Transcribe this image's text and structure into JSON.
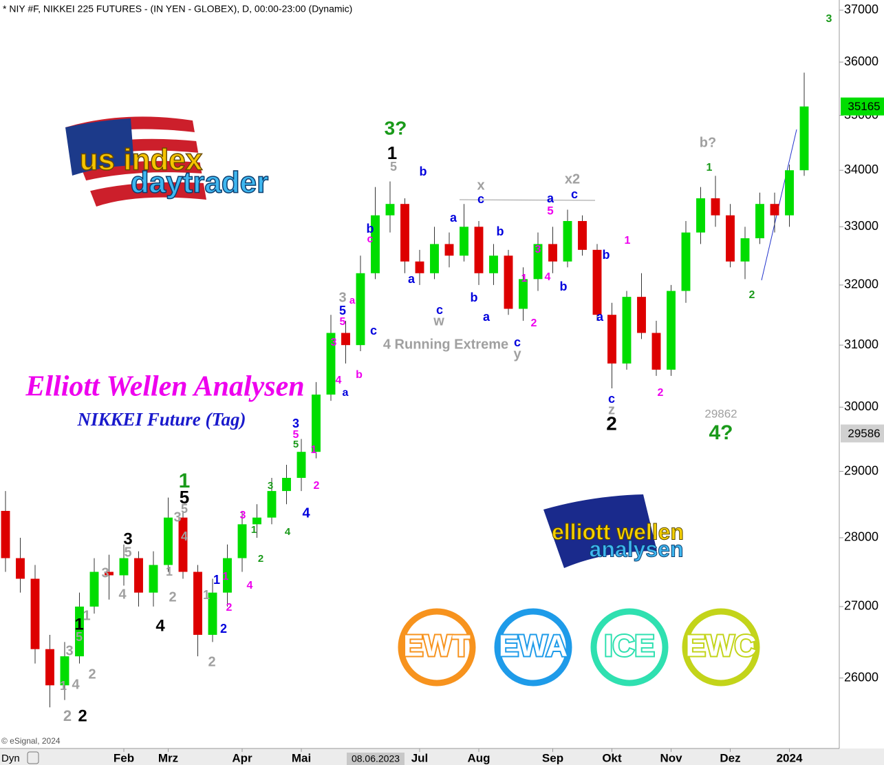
{
  "header": "* NIY #F, NIKKEI 225 FUTURES - (IN YEN - GLOBEX), D, 00:00-23:00 (Dynamic)",
  "footer": {
    "copyright": "© eSignal, 2024",
    "mode": "Dyn"
  },
  "logos": {
    "us": [
      "us index",
      "daytrader"
    ],
    "eu": [
      "elliott wellen",
      "analysen"
    ],
    "badges": [
      {
        "text": "EWT",
        "color": "#f7931e"
      },
      {
        "text": "EWA",
        "color": "#1e9be9"
      },
      {
        "text": "ICE",
        "color": "#2fe0b0"
      },
      {
        "text": "EWC",
        "color": "#c3d41a"
      }
    ]
  },
  "chart_data": {
    "type": "candlestick",
    "title": "Elliott Wellen Analysen",
    "subtitle": "NIKKEI Future (Tag)",
    "log_scale": true,
    "up_color": "#00dd00",
    "down_color": "#dd0000",
    "categories": [
      null,
      null,
      null,
      null,
      null,
      null,
      null,
      null,
      "Feb",
      null,
      null,
      "Mrz",
      null,
      null,
      null,
      null,
      "Apr",
      null,
      null,
      null,
      "Mai",
      null,
      null,
      null,
      null,
      null,
      null,
      null,
      "Jul",
      null,
      null,
      null,
      "Aug",
      null,
      null,
      null,
      null,
      "Sep",
      null,
      null,
      null,
      "Okt",
      null,
      null,
      null,
      "Nov",
      null,
      null,
      null,
      "Dez",
      null,
      null,
      null,
      "2024",
      null
    ],
    "cursor_label": "08.06.2023",
    "open": [
      28400,
      27700,
      27400,
      26400,
      25900,
      26300,
      27000,
      27500,
      27450,
      27700,
      27200,
      27600,
      28300,
      27500,
      26600,
      27200,
      27700,
      28200,
      28300,
      28700,
      28900,
      29300,
      30200,
      31200,
      31000,
      32200,
      33200,
      33400,
      32400,
      32200,
      32700,
      32500,
      33000,
      32200,
      32500,
      31600,
      32100,
      32700,
      32400,
      33100,
      32600,
      31500,
      30700,
      31800,
      31200,
      30600,
      31900,
      32900,
      33500,
      33200,
      32400,
      32800,
      33400,
      33200,
      34000
    ],
    "high": [
      28700,
      28000,
      27600,
      26600,
      26500,
      27200,
      27700,
      27750,
      27900,
      27800,
      27800,
      28600,
      28400,
      27600,
      27400,
      27900,
      28400,
      28500,
      28900,
      29100,
      29500,
      30400,
      31500,
      31400,
      32500,
      33700,
      33800,
      33500,
      32600,
      33000,
      32900,
      33400,
      33100,
      32700,
      32600,
      32300,
      32900,
      33000,
      33300,
      33200,
      32700,
      31700,
      31900,
      32200,
      31400,
      32000,
      33100,
      33700,
      33900,
      33400,
      33000,
      33600,
      33600,
      34100,
      35800
    ],
    "low": [
      27500,
      27200,
      26200,
      25600,
      25700,
      26200,
      26900,
      27100,
      27300,
      27000,
      27000,
      27500,
      27400,
      26300,
      26500,
      27000,
      27500,
      28000,
      28200,
      28500,
      28700,
      29200,
      30100,
      30700,
      30900,
      32100,
      32900,
      32200,
      32000,
      32100,
      32300,
      32400,
      32000,
      32000,
      31500,
      31400,
      31900,
      32200,
      32300,
      32500,
      31400,
      30300,
      30600,
      31100,
      30500,
      30500,
      31700,
      32700,
      33000,
      32300,
      32100,
      32700,
      32900,
      33000,
      33900
    ],
    "close": [
      27700,
      27400,
      26400,
      25900,
      26300,
      27000,
      27500,
      27450,
      27700,
      27200,
      27600,
      28300,
      27500,
      26600,
      27200,
      27700,
      28200,
      28300,
      28700,
      28900,
      29300,
      30200,
      31200,
      31000,
      32200,
      33200,
      33400,
      32400,
      32200,
      32700,
      32500,
      33000,
      32200,
      32500,
      31600,
      32100,
      32700,
      32400,
      33100,
      32600,
      31500,
      30700,
      31800,
      31200,
      30600,
      31900,
      32900,
      33500,
      33200,
      32400,
      32800,
      33400,
      33200,
      34000,
      35165
    ],
    "ylim": [
      25050,
      37200
    ],
    "yticks": [
      26000,
      27000,
      28000,
      29000,
      30000,
      31000,
      32000,
      33000,
      34000,
      35000,
      36000,
      37000
    ],
    "price_labels": [
      {
        "value": 35165,
        "color": "#00dd00"
      },
      {
        "value": 29586,
        "color": "#d0d0d0"
      }
    ],
    "annotations": [
      {
        "text": "3?",
        "color": "#1a9a1a"
      },
      {
        "text": "1",
        "color": "#000000"
      },
      {
        "text": "5",
        "color": "#a0a0a0"
      },
      {
        "text": "b",
        "color": "#0000dd"
      },
      {
        "text": "x",
        "color": "#a0a0a0"
      },
      {
        "text": "x2",
        "color": "#a0a0a0"
      },
      {
        "text": "a",
        "color": "#0000dd"
      },
      {
        "text": "c",
        "color": "#0000dd"
      },
      {
        "text": "5",
        "color": "#ee00ee"
      },
      {
        "text": "a",
        "color": "#0000dd"
      },
      {
        "text": "c",
        "color": "#0000dd"
      },
      {
        "text": "b",
        "color": "#0000dd"
      },
      {
        "text": "b",
        "color": "#0000dd"
      },
      {
        "text": "c",
        "color": "#ee00ee"
      },
      {
        "text": "a",
        "color": "#0000dd"
      },
      {
        "text": "c",
        "color": "#0000dd"
      },
      {
        "text": "w",
        "color": "#a0a0a0"
      },
      {
        "text": "b",
        "color": "#0000dd"
      },
      {
        "text": "a",
        "color": "#0000dd"
      },
      {
        "text": "1",
        "color": "#ee00ee"
      },
      {
        "text": "3",
        "color": "#ee00ee"
      },
      {
        "text": "4",
        "color": "#ee00ee"
      },
      {
        "text": "b",
        "color": "#0000dd"
      },
      {
        "text": "2",
        "color": "#ee00ee"
      },
      {
        "text": "c",
        "color": "#0000dd"
      },
      {
        "text": "y",
        "color": "#a0a0a0"
      },
      {
        "text": "4 Running Extreme",
        "color": "#a0a0a0"
      },
      {
        "text": "b",
        "color": "#0000dd"
      },
      {
        "text": "a",
        "color": "#0000dd"
      },
      {
        "text": "1",
        "color": "#ee00ee"
      },
      {
        "text": "c",
        "color": "#0000dd"
      },
      {
        "text": "z",
        "color": "#a0a0a0"
      },
      {
        "text": "2",
        "color": "#000000"
      },
      {
        "text": "2",
        "color": "#ee00ee"
      },
      {
        "text": "b?",
        "color": "#a0a0a0"
      },
      {
        "text": "1",
        "color": "#1a9a1a"
      },
      {
        "text": "2",
        "color": "#1a9a1a"
      },
      {
        "text": "3",
        "color": "#1a9a1a"
      },
      {
        "text": "29862",
        "color": "#a0a0a0"
      },
      {
        "text": "4?",
        "color": "#1a9a1a"
      },
      {
        "text": "3",
        "color": "#a0a0a0"
      },
      {
        "text": "5",
        "color": "#0000dd"
      },
      {
        "text": "5",
        "color": "#ee00ee"
      },
      {
        "text": "3",
        "color": "#ee00ee"
      },
      {
        "text": "4",
        "color": "#ee00ee"
      },
      {
        "text": "a",
        "color": "#0000dd"
      },
      {
        "text": "b",
        "color": "#ee00ee"
      },
      {
        "text": "c",
        "color": "#0000dd"
      },
      {
        "text": "a",
        "color": "#ee00ee"
      },
      {
        "text": "3",
        "color": "#0000dd"
      },
      {
        "text": "5",
        "color": "#ee00ee"
      },
      {
        "text": "5",
        "color": "#1a9a1a"
      },
      {
        "text": "1",
        "color": "#ee00ee"
      },
      {
        "text": "2",
        "color": "#ee00ee"
      },
      {
        "text": "4",
        "color": "#0000dd"
      },
      {
        "text": "3",
        "color": "#1a9a1a"
      },
      {
        "text": "4",
        "color": "#1a9a1a"
      },
      {
        "text": "3",
        "color": "#ee00ee"
      },
      {
        "text": "1",
        "color": "#1a9a1a"
      },
      {
        "text": "2",
        "color": "#1a9a1a"
      },
      {
        "text": "4",
        "color": "#ee00ee"
      },
      {
        "text": "1",
        "color": "#0000dd"
      },
      {
        "text": "1",
        "color": "#ee00ee"
      },
      {
        "text": "2",
        "color": "#ee00ee"
      },
      {
        "text": "2",
        "color": "#0000dd"
      },
      {
        "text": "2",
        "color": "#a0a0a0"
      },
      {
        "text": "1",
        "color": "#a0a0a0"
      },
      {
        "text": "1",
        "color": "#1a9a1a"
      },
      {
        "text": "5",
        "color": "#000000"
      },
      {
        "text": "3",
        "color": "#a0a0a0"
      },
      {
        "text": "5",
        "color": "#a0a0a0"
      },
      {
        "text": "4",
        "color": "#a0a0a0"
      },
      {
        "text": "3",
        "color": "#000000"
      },
      {
        "text": "5",
        "color": "#a0a0a0"
      },
      {
        "text": "3",
        "color": "#a0a0a0"
      },
      {
        "text": "4",
        "color": "#a0a0a0"
      },
      {
        "text": "1",
        "color": "#a0a0a0"
      },
      {
        "text": "2",
        "color": "#a0a0a0"
      },
      {
        "text": "4",
        "color": "#000000"
      },
      {
        "text": "1",
        "color": "#000000"
      },
      {
        "text": "5",
        "color": "#a0a0a0"
      },
      {
        "text": "1",
        "color": "#a0a0a0"
      },
      {
        "text": "3",
        "color": "#a0a0a0"
      },
      {
        "text": "1",
        "color": "#a0a0a0"
      },
      {
        "text": "4",
        "color": "#a0a0a0"
      },
      {
        "text": "2",
        "color": "#a0a0a0"
      },
      {
        "text": "2",
        "color": "#a0a0a0"
      },
      {
        "text": "2",
        "color": "#000000"
      }
    ]
  }
}
